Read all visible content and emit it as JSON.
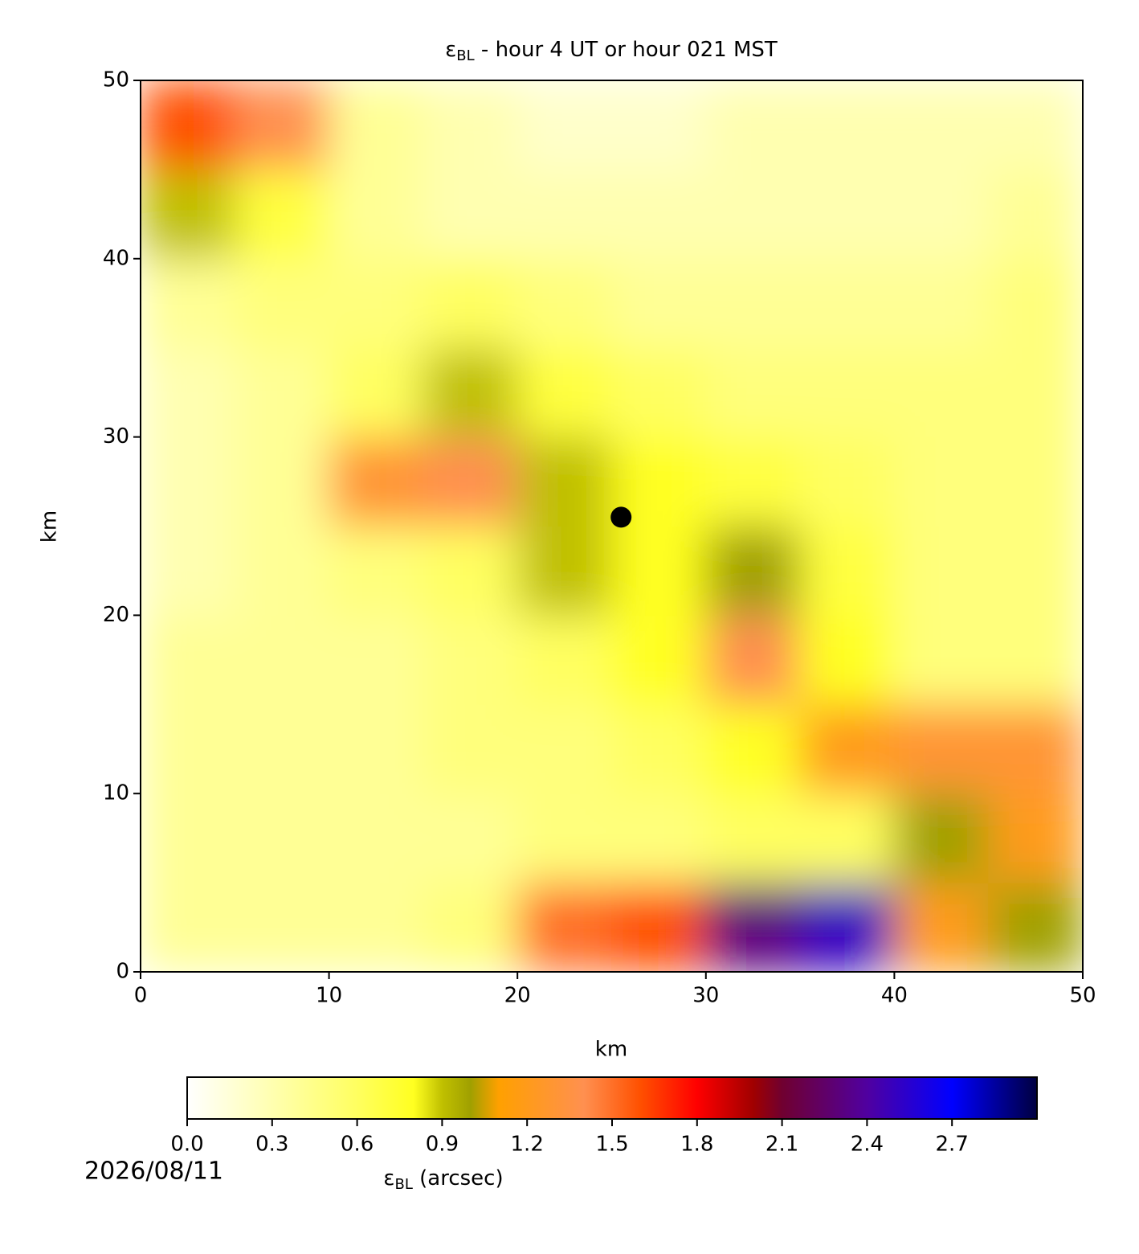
{
  "chart_data": {
    "type": "heatmap",
    "title": {
      "main": "ε",
      "sub": "BL",
      "rest": " - hour 4 UT or hour 021 MST"
    },
    "xlabel": "km",
    "ylabel": "km",
    "xlim": [
      0,
      50
    ],
    "ylim": [
      0,
      50
    ],
    "xticks": [
      0,
      10,
      20,
      30,
      40,
      50
    ],
    "yticks": [
      0,
      10,
      20,
      30,
      40,
      50
    ],
    "x_edges": [
      0,
      5,
      10,
      15,
      20,
      25,
      30,
      35,
      40,
      45,
      50
    ],
    "y_edges": [
      0,
      5,
      10,
      15,
      20,
      25,
      30,
      35,
      40,
      45,
      50
    ],
    "z": [
      [
        0.4,
        0.4,
        0.4,
        0.5,
        1.5,
        1.6,
        2.3,
        2.5,
        1.2,
        1.0
      ],
      [
        0.4,
        0.4,
        0.4,
        0.4,
        0.5,
        0.5,
        0.6,
        0.6,
        1.0,
        1.2
      ],
      [
        0.4,
        0.4,
        0.4,
        0.5,
        0.5,
        0.6,
        0.8,
        1.2,
        1.3,
        1.3
      ],
      [
        0.4,
        0.4,
        0.4,
        0.5,
        0.6,
        0.8,
        1.4,
        0.8,
        0.5,
        0.5
      ],
      [
        0.3,
        0.4,
        0.5,
        0.6,
        0.9,
        0.8,
        1.0,
        0.7,
        0.5,
        0.5
      ],
      [
        0.3,
        0.4,
        1.3,
        1.4,
        0.9,
        0.8,
        0.7,
        0.6,
        0.5,
        0.5
      ],
      [
        0.3,
        0.4,
        0.6,
        0.9,
        0.7,
        0.6,
        0.5,
        0.5,
        0.5,
        0.5
      ],
      [
        0.4,
        0.5,
        0.5,
        0.6,
        0.5,
        0.4,
        0.4,
        0.4,
        0.4,
        0.5
      ],
      [
        0.9,
        0.7,
        0.4,
        0.3,
        0.3,
        0.3,
        0.3,
        0.3,
        0.3,
        0.4
      ],
      [
        1.6,
        1.4,
        0.4,
        0.3,
        0.2,
        0.2,
        0.3,
        0.3,
        0.3,
        0.3
      ]
    ],
    "marker": {
      "x": 25.5,
      "y": 25.5,
      "color": "#000000"
    },
    "colorscale": [
      [
        0,
        "#ffffff"
      ],
      [
        0.3,
        "#ffffb0"
      ],
      [
        0.6,
        "#ffff60"
      ],
      [
        0.8,
        "#ffff20"
      ],
      [
        0.9,
        "#c0c000"
      ],
      [
        1.0,
        "#a0a000"
      ],
      [
        1.1,
        "#ffa000"
      ],
      [
        1.4,
        "#ff9050"
      ],
      [
        1.6,
        "#ff5000"
      ],
      [
        1.8,
        "#ff0000"
      ],
      [
        2.0,
        "#a00000"
      ],
      [
        2.1,
        "#700030"
      ],
      [
        2.4,
        "#5000a0"
      ],
      [
        2.7,
        "#0000ff"
      ],
      [
        3.0,
        "#000040"
      ]
    ],
    "colorbar": {
      "lim": [
        0,
        3.0
      ],
      "ticks": [
        {
          "value": 0,
          "label": "0.0"
        },
        {
          "value": 0.3,
          "label": "0.3"
        },
        {
          "value": 0.6,
          "label": "0.6"
        },
        {
          "value": 0.9,
          "label": "0.9"
        },
        {
          "value": 1.2,
          "label": "1.2"
        },
        {
          "value": 1.5,
          "label": "1.5"
        },
        {
          "value": 1.8,
          "label": "1.8"
        },
        {
          "value": 2.1,
          "label": "2.1"
        },
        {
          "value": 2.4,
          "label": "2.4"
        },
        {
          "value": 2.7,
          "label": "2.7"
        }
      ],
      "label": {
        "main": "ε",
        "sub": "BL",
        "rest": " (arcsec)"
      }
    },
    "date": "2026/08/11"
  }
}
